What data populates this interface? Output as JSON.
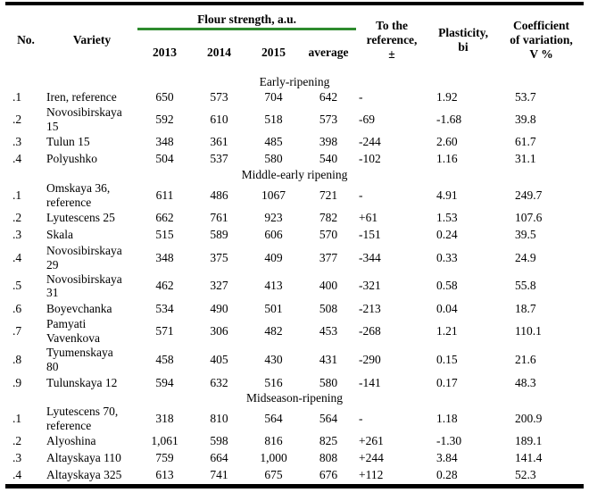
{
  "table": {
    "header": {
      "no": "No.",
      "variety": "Variety",
      "flour_strength_group": "Flour strength, a.u.",
      "year_2013": "2013",
      "year_2014": "2014",
      "year_2015": "2015",
      "year_average": "average",
      "to_reference": "To the reference, ±",
      "plasticity": "Plasticity, bi",
      "coefficient_of_variation": "Coefficient of variation, V %"
    },
    "sections": [
      {
        "title": "Early-ripening",
        "rows": [
          [
            ".1",
            "Iren, reference",
            "650",
            "573",
            "704",
            "642",
            "-",
            "1.92",
            "53.7"
          ],
          [
            ".2",
            "Novosibirskaya 15",
            "592",
            "610",
            "518",
            "573",
            "-69",
            "-1.68",
            "39.8"
          ],
          [
            ".3",
            "Tulun 15",
            "348",
            "361",
            "485",
            "398",
            "-244",
            "2.60",
            "61.7"
          ],
          [
            ".4",
            "Polyushko",
            "504",
            "537",
            "580",
            "540",
            "-102",
            "1.16",
            "31.1"
          ]
        ]
      },
      {
        "title": "Middle-early ripening",
        "rows": [
          [
            ".1",
            "Omskaya 36, reference",
            "611",
            "486",
            "1067",
            "721",
            "-",
            "4.91",
            "249.7"
          ],
          [
            ".2",
            "Lyutescens 25",
            "662",
            "761",
            "923",
            "782",
            "+61",
            "1.53",
            "107.6"
          ],
          [
            ".3",
            "Skala",
            "515",
            "589",
            "606",
            "570",
            "-151",
            "0.24",
            "39.5"
          ],
          [
            ".4",
            "Novosibirskaya 29",
            "348",
            "375",
            "409",
            "377",
            "-344",
            "0.33",
            "24.9"
          ],
          [
            ".5",
            "Novosibirskaya 31",
            "462",
            "327",
            "413",
            "400",
            "-321",
            "0.58",
            "55.8"
          ],
          [
            ".6",
            "Boyevchanka",
            "534",
            "490",
            "501",
            "508",
            "-213",
            "0.04",
            "18.7"
          ],
          [
            ".7",
            "Pamyati Vavenkova",
            "571",
            "306",
            "482",
            "453",
            "-268",
            "1.21",
            "110.1"
          ],
          [
            ".8",
            "Tyumenskaya 80",
            "458",
            "405",
            "430",
            "431",
            "-290",
            "0.15",
            "21.6"
          ],
          [
            ".9",
            "Tulunskaya 12",
            "594",
            "632",
            "516",
            "580",
            "-141",
            "0.17",
            "48.3"
          ]
        ]
      },
      {
        "title": "Midseason-ripening",
        "rows": [
          [
            ".1",
            "Lyutescens 70, reference",
            "318",
            "810",
            "564",
            "564",
            "-",
            "1.18",
            "200.9"
          ],
          [
            ".2",
            "Alyoshina",
            "1,061",
            "598",
            "816",
            "825",
            "+261",
            "-1.30",
            "189.1"
          ],
          [
            ".3",
            "Altayskaya 110",
            "759",
            "664",
            "1,000",
            "808",
            "+244",
            "3.84",
            "141.4"
          ],
          [
            ".4",
            "Altayskaya 325",
            "613",
            "741",
            "675",
            "676",
            "+112",
            "0.28",
            "52.3"
          ]
        ]
      }
    ]
  },
  "colors": {
    "accent_green": "#2e8b2e",
    "border_black": "#000000",
    "text": "#000000"
  }
}
